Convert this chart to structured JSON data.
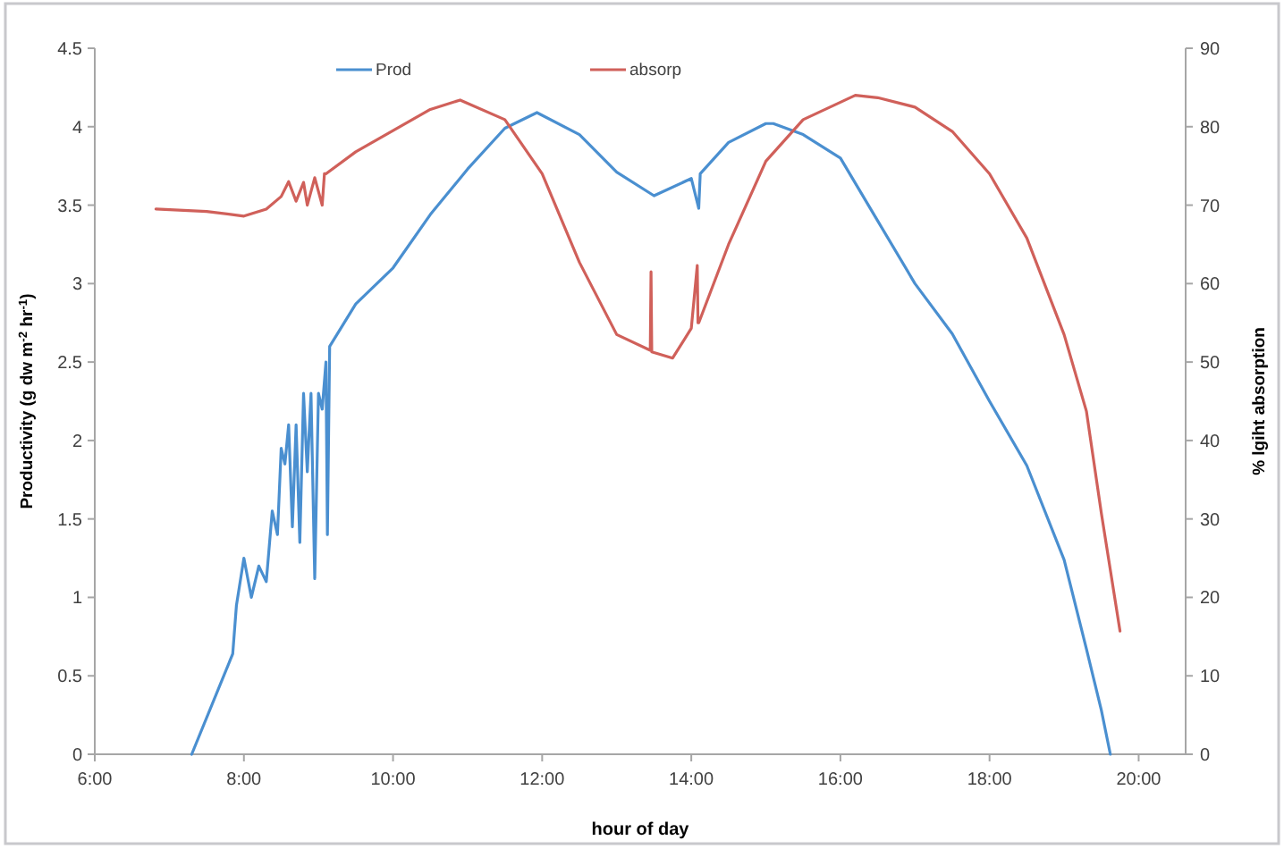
{
  "chart_data": {
    "type": "line",
    "xlabel": "hour of day",
    "ylabel": "Productivity (g dw m$^{-2}$ hr$^{-1}$)",
    "y2label": "% lgiht absorption",
    "xlim": [
      6,
      20.63
    ],
    "xticks": [
      {
        "value": 6,
        "label": "6:00"
      },
      {
        "value": 8,
        "label": "8:00"
      },
      {
        "value": 10,
        "label": "10:00"
      },
      {
        "value": 12,
        "label": "12:00"
      },
      {
        "value": 14,
        "label": "14:00"
      },
      {
        "value": 16,
        "label": "16:00"
      },
      {
        "value": 18,
        "label": "18:00"
      },
      {
        "value": 20,
        "label": "20:00"
      }
    ],
    "ylim": [
      0,
      4.5
    ],
    "yticks": [
      0,
      0.5,
      1,
      1.5,
      2,
      2.5,
      3,
      3.5,
      4,
      4.5
    ],
    "y2lim": [
      0,
      90
    ],
    "y2ticks": [
      0,
      10,
      20,
      30,
      40,
      50,
      60,
      70,
      80,
      90
    ],
    "grid": false,
    "legend": "top",
    "line_style": "solid",
    "marker": "none",
    "series": [
      {
        "name": "Prod",
        "color": "#4a8fd0",
        "x": [
          7.3,
          7.85,
          7.9,
          8.0,
          8.1,
          8.2,
          8.3,
          8.38,
          8.45,
          8.5,
          8.55,
          8.6,
          8.65,
          8.7,
          8.75,
          8.8,
          8.85,
          8.9,
          8.95,
          9.0,
          9.05,
          9.1,
          9.12,
          9.15,
          9.5,
          10,
          10.5,
          11,
          11.5,
          11.93,
          12.5,
          13,
          13.5,
          14,
          14.1,
          14.12,
          14.5,
          15,
          15.1,
          15.5,
          16,
          16.5,
          17,
          17.5,
          18,
          18.5,
          19,
          19.3,
          19.5,
          19.62
        ],
        "values": [
          0,
          0.64,
          0.95,
          1.25,
          1.0,
          1.2,
          1.1,
          1.55,
          1.4,
          1.95,
          1.85,
          2.1,
          1.45,
          2.1,
          1.35,
          2.3,
          1.8,
          2.3,
          1.12,
          2.3,
          2.2,
          2.5,
          1.4,
          2.6,
          2.87,
          3.1,
          3.44,
          3.73,
          3.99,
          4.09,
          3.95,
          3.71,
          3.56,
          3.67,
          3.48,
          3.7,
          3.9,
          4.02,
          4.02,
          3.95,
          3.8,
          3.4,
          3.0,
          2.68,
          2.25,
          1.84,
          1.24,
          0.67,
          0.28,
          0
        ]
      },
      {
        "name": "absorp",
        "color": "#d0605a",
        "axis": "y2",
        "x": [
          6.82,
          7.5,
          8.0,
          8.3,
          8.5,
          8.6,
          8.7,
          8.8,
          8.85,
          8.95,
          9.05,
          9.08,
          9.1,
          9.5,
          10,
          10.5,
          10.9,
          11.5,
          12,
          12.5,
          13,
          13.45,
          13.46,
          13.47,
          13.75,
          14,
          14.08,
          14.09,
          14.1,
          14.5,
          15,
          15.5,
          16.2,
          16.5,
          17,
          17.5,
          18,
          18.5,
          19,
          19.3,
          19.5,
          19.75
        ],
        "values": [
          69.5,
          69.2,
          68.6,
          69.5,
          71.1,
          73,
          70.5,
          72.9,
          70,
          73.5,
          70,
          74,
          74,
          76.8,
          79.5,
          82.2,
          83.4,
          80.9,
          74,
          62.7,
          53.5,
          51.5,
          61.5,
          51.3,
          50.5,
          54.3,
          62.3,
          55,
          55,
          65,
          75.6,
          80.9,
          84,
          83.7,
          82.5,
          79.4,
          74,
          65.8,
          53.5,
          43.7,
          30.7,
          15.7
        ]
      }
    ]
  }
}
